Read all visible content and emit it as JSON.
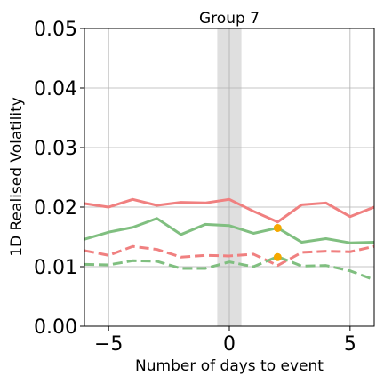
{
  "chart_data": {
    "type": "line",
    "title": "Group 7",
    "xlabel": "Number of days to event",
    "ylabel": "1D Realised Volatility",
    "xlim": [
      -6,
      6
    ],
    "ylim": [
      0,
      0.05
    ],
    "x_ticks": [
      -5,
      0,
      5
    ],
    "x_tick_labels": [
      "−5",
      "0",
      "5"
    ],
    "y_ticks": [
      0,
      0.01,
      0.02,
      0.03,
      0.04,
      0.05
    ],
    "y_tick_labels": [
      "0.00",
      "0.01",
      "0.02",
      "0.03",
      "0.04",
      "0.05"
    ],
    "grid": true,
    "shaded_region": {
      "x": [
        -0.5,
        0.5
      ],
      "color": "#d9d9d9"
    },
    "x": [
      -6,
      -5,
      -4,
      -3,
      -2,
      -1,
      0,
      1,
      2,
      3,
      4,
      5,
      6
    ],
    "series": [
      {
        "color": "#f08080",
        "style": "solid",
        "values": [
          0.0206,
          0.02,
          0.0213,
          0.0203,
          0.0208,
          0.0207,
          0.0213,
          0.0193,
          0.0175,
          0.0204,
          0.0207,
          0.0184,
          0.02
        ]
      },
      {
        "color": "#80bf80",
        "style": "solid",
        "values": [
          0.0146,
          0.0158,
          0.0166,
          0.0181,
          0.0154,
          0.0171,
          0.0169,
          0.0156,
          0.0165,
          0.0141,
          0.0147,
          0.014,
          0.0141
        ]
      },
      {
        "color": "#f08080",
        "style": "dashed",
        "values": [
          0.0127,
          0.0119,
          0.0134,
          0.0129,
          0.0116,
          0.0119,
          0.0118,
          0.0121,
          0.0102,
          0.0124,
          0.0126,
          0.0125,
          0.0134
        ]
      },
      {
        "color": "#80bf80",
        "style": "dashed",
        "values": [
          0.0104,
          0.0103,
          0.011,
          0.0109,
          0.0097,
          0.0097,
          0.0108,
          0.01,
          0.0117,
          0.0101,
          0.0102,
          0.0093,
          0.0078
        ]
      }
    ],
    "markers": [
      {
        "x": 2,
        "y": 0.0165,
        "color": "#f5a800"
      },
      {
        "x": 2,
        "y": 0.0116,
        "color": "#f5a800"
      }
    ]
  }
}
